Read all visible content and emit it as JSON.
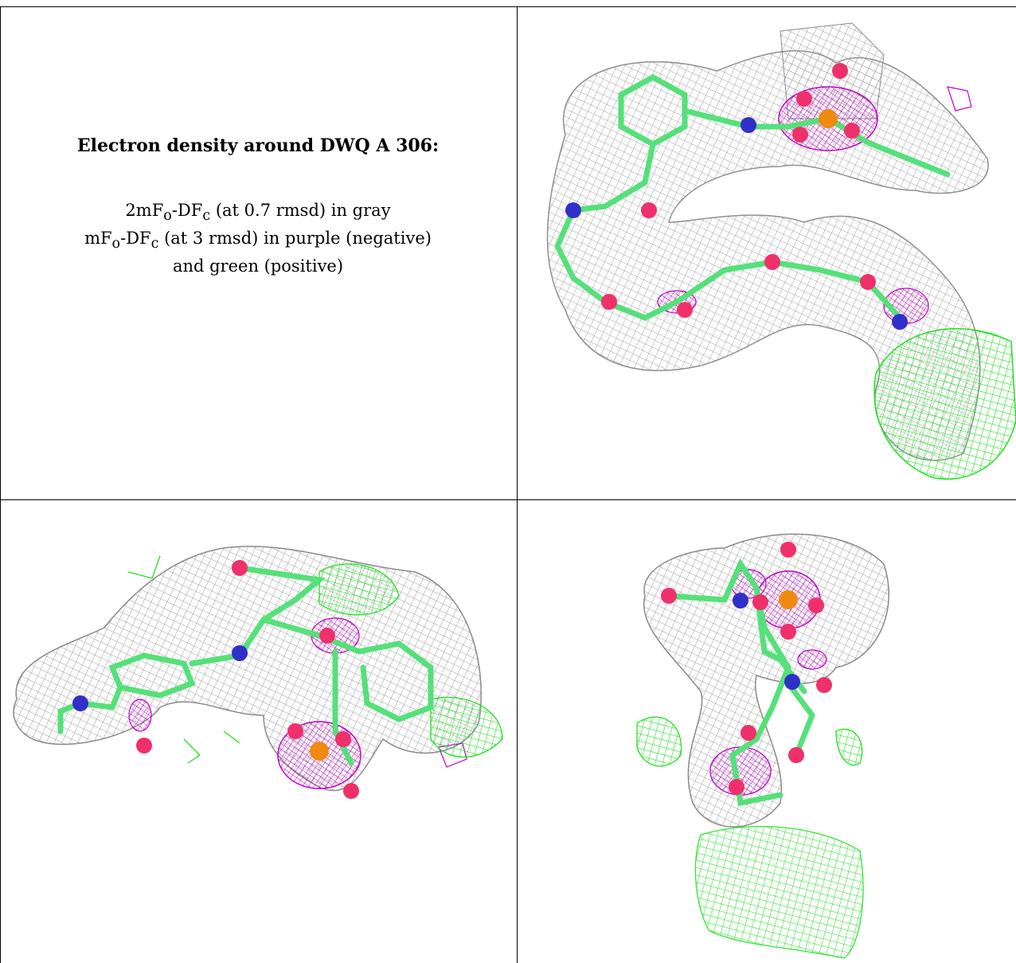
{
  "caption": {
    "title": "Electron density around DWQ A 306:",
    "line1_pre": "2mF",
    "line1_sub1": "o",
    "line1_mid": "-DF",
    "line1_sub2": "c",
    "line1_post": " (at 0.7 rmsd) in gray",
    "line2_pre": "mF",
    "line2_sub1": "o",
    "line2_mid": "-DF",
    "line2_sub2": "c",
    "line2_post": " (at 3 rmsd) in purple (negative)",
    "line3": "and green (positive)"
  },
  "colors": {
    "mesh_gray": "#9a9a9a",
    "mesh_purple": "#c000c8",
    "mesh_green": "#22e022",
    "carbon": "#55e07a",
    "oxygen": "#f0306a",
    "nitrogen": "#3030c8",
    "phosphorus": "#f08a10"
  },
  "panels": [
    {
      "id": "view-1",
      "icon": "density-map-view-1"
    },
    {
      "id": "view-2",
      "icon": "density-map-view-2"
    },
    {
      "id": "view-3",
      "icon": "density-map-view-3"
    }
  ]
}
